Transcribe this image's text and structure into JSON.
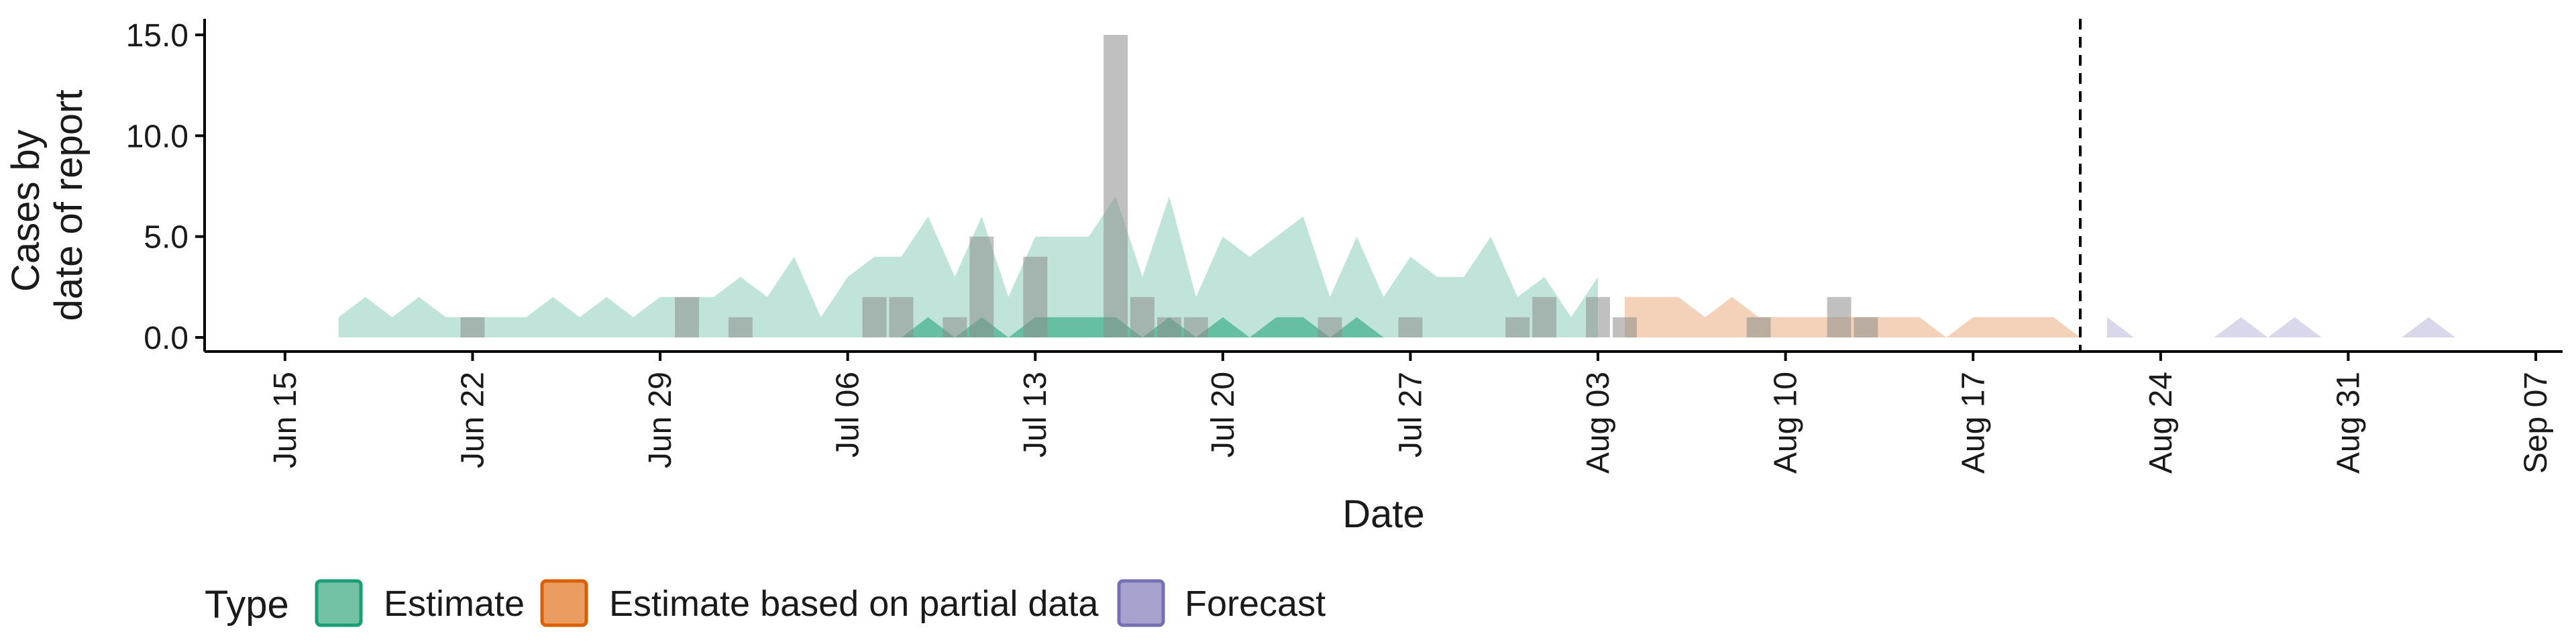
{
  "chart_data": {
    "type": "area",
    "title": "",
    "xlabel": "Date",
    "ylabel_lines": [
      "Cases by",
      "date of report"
    ],
    "x_range": [
      "2020-06-12",
      "2020-09-08"
    ],
    "ylim": [
      -0.7,
      15.8
    ],
    "y_ticks": [
      0,
      5,
      10,
      15
    ],
    "y_tick_labels": [
      "0.0",
      "5.0",
      "10.0",
      "15.0"
    ],
    "x_ticks": [
      "2020-06-15",
      "2020-06-22",
      "2020-06-29",
      "2020-07-06",
      "2020-07-13",
      "2020-07-20",
      "2020-07-27",
      "2020-08-03",
      "2020-08-10",
      "2020-08-17",
      "2020-08-24",
      "2020-08-31",
      "2020-09-07"
    ],
    "x_tick_labels": [
      "Jun 15",
      "Jun 22",
      "Jun 29",
      "Jul 06",
      "Jul 13",
      "Jul 20",
      "Jul 27",
      "Aug 03",
      "Aug 10",
      "Aug 17",
      "Aug 24",
      "Aug 31",
      "Sep 07"
    ],
    "grid": false,
    "legend_position": "bottom",
    "legend": {
      "title": "Type",
      "entries": [
        {
          "label": "Estimate",
          "fill": "#74c2a5",
          "stroke": "#1b9e77"
        },
        {
          "label": "Estimate based on partial data",
          "fill": "#eb9c60",
          "stroke": "#d95f02"
        },
        {
          "label": "Forecast",
          "fill": "#a6a3cf",
          "stroke": "#7570b3"
        }
      ]
    },
    "vline_date": "2020-08-21",
    "observed_cases": [
      {
        "date": "2020-06-22",
        "value": 1
      },
      {
        "date": "2020-06-30",
        "value": 2
      },
      {
        "date": "2020-07-02",
        "value": 1
      },
      {
        "date": "2020-07-07",
        "value": 2
      },
      {
        "date": "2020-07-08",
        "value": 2
      },
      {
        "date": "2020-07-10",
        "value": 1
      },
      {
        "date": "2020-07-11",
        "value": 5
      },
      {
        "date": "2020-07-13",
        "value": 4
      },
      {
        "date": "2020-07-16",
        "value": 15
      },
      {
        "date": "2020-07-17",
        "value": 2
      },
      {
        "date": "2020-07-18",
        "value": 1
      },
      {
        "date": "2020-07-19",
        "value": 1
      },
      {
        "date": "2020-07-24",
        "value": 1
      },
      {
        "date": "2020-07-27",
        "value": 1
      },
      {
        "date": "2020-07-31",
        "value": 1
      },
      {
        "date": "2020-08-01",
        "value": 2
      },
      {
        "date": "2020-08-03",
        "value": 2
      },
      {
        "date": "2020-08-04",
        "value": 1
      },
      {
        "date": "2020-08-09",
        "value": 1
      },
      {
        "date": "2020-08-12",
        "value": 2
      },
      {
        "date": "2020-08-13",
        "value": 1
      }
    ],
    "series": [
      {
        "type_key": "Estimate",
        "band": "outer",
        "x": [
          "2020-06-17",
          "2020-06-18",
          "2020-06-19",
          "2020-06-20",
          "2020-06-21",
          "2020-06-22",
          "2020-06-23",
          "2020-06-24",
          "2020-06-25",
          "2020-06-26",
          "2020-06-27",
          "2020-06-28",
          "2020-06-29",
          "2020-06-30",
          "2020-07-01",
          "2020-07-02",
          "2020-07-03",
          "2020-07-04",
          "2020-07-05",
          "2020-07-06",
          "2020-07-07",
          "2020-07-08",
          "2020-07-09",
          "2020-07-10",
          "2020-07-11",
          "2020-07-12",
          "2020-07-13",
          "2020-07-14",
          "2020-07-15",
          "2020-07-16",
          "2020-07-17",
          "2020-07-18",
          "2020-07-19",
          "2020-07-20",
          "2020-07-21",
          "2020-07-22",
          "2020-07-23",
          "2020-07-24",
          "2020-07-25",
          "2020-07-26",
          "2020-07-27",
          "2020-07-28",
          "2020-07-29",
          "2020-07-30",
          "2020-07-31",
          "2020-08-01",
          "2020-08-02",
          "2020-08-03"
        ],
        "upper": [
          1,
          2,
          1,
          2,
          1,
          1,
          1,
          1,
          2,
          1,
          2,
          1,
          2,
          2,
          2,
          3,
          2,
          4,
          1,
          3,
          4,
          4,
          6,
          3,
          6,
          2,
          5,
          5,
          5,
          7,
          3,
          7,
          2,
          5,
          4,
          5,
          6,
          2,
          5,
          2,
          4,
          3,
          3,
          5,
          2,
          3,
          1,
          3
        ],
        "lower": [
          0,
          0,
          0,
          0,
          0,
          0,
          0,
          0,
          0,
          0,
          0,
          0,
          0,
          0,
          0,
          0,
          0,
          0,
          0,
          0,
          0,
          0,
          0,
          0,
          0,
          0,
          0,
          0,
          0,
          0,
          0,
          0,
          0,
          0,
          0,
          0,
          0,
          0,
          0,
          0,
          0,
          0,
          0,
          0,
          0,
          0,
          0,
          0
        ]
      },
      {
        "type_key": "Estimate",
        "band": "inner",
        "x": [
          "2020-07-08",
          "2020-07-09",
          "2020-07-10",
          "2020-07-11",
          "2020-07-12",
          "2020-07-13",
          "2020-07-14",
          "2020-07-15",
          "2020-07-16",
          "2020-07-17",
          "2020-07-18",
          "2020-07-19",
          "2020-07-20",
          "2020-07-21",
          "2020-07-22",
          "2020-07-23",
          "2020-07-24",
          "2020-07-25",
          "2020-07-26"
        ],
        "upper": [
          0,
          1,
          0,
          1,
          0,
          1,
          1,
          1,
          1,
          0,
          1,
          0,
          1,
          0,
          1,
          1,
          0,
          1,
          0
        ],
        "lower": [
          0,
          0,
          0,
          0,
          0,
          0,
          0,
          0,
          0,
          0,
          0,
          0,
          0,
          0,
          0,
          0,
          0,
          0,
          0
        ]
      },
      {
        "type_key": "Estimate based on partial data",
        "band": "outer",
        "x": [
          "2020-08-04",
          "2020-08-05",
          "2020-08-06",
          "2020-08-07",
          "2020-08-08",
          "2020-08-09",
          "2020-08-10",
          "2020-08-11",
          "2020-08-12",
          "2020-08-13",
          "2020-08-14",
          "2020-08-15",
          "2020-08-16",
          "2020-08-17",
          "2020-08-18",
          "2020-08-19",
          "2020-08-20",
          "2020-08-21"
        ],
        "upper": [
          2,
          2,
          2,
          1,
          2,
          1,
          1,
          1,
          1,
          1,
          1,
          1,
          0,
          1,
          1,
          1,
          1,
          0
        ],
        "lower": [
          0,
          0,
          0,
          0,
          0,
          0,
          0,
          0,
          0,
          0,
          0,
          0,
          0,
          0,
          0,
          0,
          0,
          0
        ]
      },
      {
        "type_key": "Forecast",
        "band": "outer",
        "x": [
          "2020-08-22",
          "2020-08-23",
          "2020-08-24",
          "2020-08-25",
          "2020-08-26",
          "2020-08-27",
          "2020-08-28",
          "2020-08-29",
          "2020-08-30",
          "2020-08-31",
          "2020-09-01",
          "2020-09-02",
          "2020-09-03",
          "2020-09-04"
        ],
        "upper": [
          1,
          0,
          0,
          0,
          0,
          1,
          0,
          1,
          0,
          0,
          0,
          0,
          1,
          0
        ],
        "lower": [
          0,
          0,
          0,
          0,
          0,
          0,
          0,
          0,
          0,
          0,
          0,
          0,
          0,
          0
        ]
      }
    ]
  }
}
